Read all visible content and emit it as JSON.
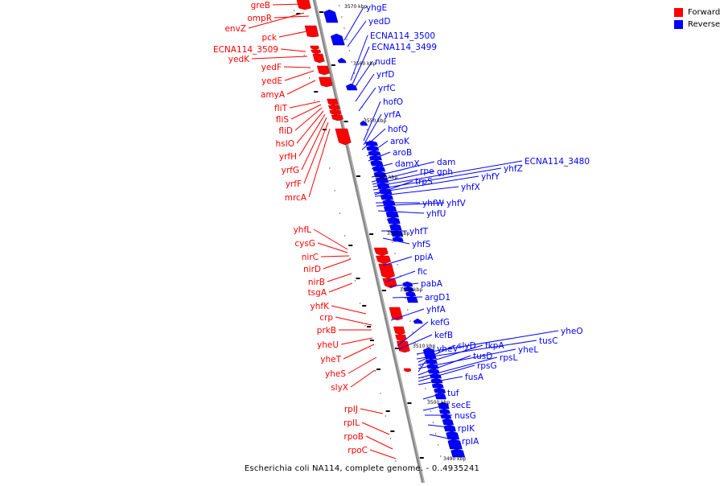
{
  "legend": {
    "forward_label": "Forward",
    "reverse_label": "Reverse",
    "forward_color": "#ff0000",
    "reverse_color": "#0000ff"
  },
  "caption": "Escherichia coli NA114, complete genome. - 0..4935241",
  "scale_unit": "kbp",
  "scale_ticks": [
    "3570 kbp",
    "3560 kbp",
    "3550 kbp",
    "3540 kbp",
    "3530 kbp",
    "3520 kbp",
    "3510 kbp",
    "3500 kbp",
    "3490 kbp"
  ],
  "forward_genes": [
    "greB",
    "ompR",
    "envZ",
    "pck",
    "ECNA114_3509",
    "yedK",
    "yedF",
    "yedE",
    "amyA",
    "fliT",
    "fliS",
    "fliD",
    "hsIO",
    "yrfH",
    "yrfG",
    "yrfF",
    "mrcA",
    "yhfL",
    "cysG",
    "nirC",
    "nirD",
    "nirB",
    "tsgA",
    "yhfK",
    "crp",
    "prkB",
    "yheU",
    "yheT",
    "yheS",
    "slyX",
    "rpIJ",
    "rpIL",
    "rpoB",
    "rpoC"
  ],
  "reverse_genes": [
    "yhgE",
    "yedD",
    "ECNA114_3500",
    "ECNA114_3499",
    "nudE",
    "yrfD",
    "yrfC",
    "hofO",
    "yrfA",
    "hofQ",
    "aroK",
    "aroB",
    "damX",
    "dam",
    "rpe",
    "gph",
    "ECNA114_3480",
    "yhfZ",
    "yhfY",
    "trpS",
    "yhfX",
    "yhfW",
    "yhfV",
    "yhfU",
    "yhfT",
    "yhfS",
    "ppiA",
    "fic",
    "pabA",
    "argD1",
    "yhfA",
    "kefG",
    "kefB",
    "yheO",
    "tusC",
    "slyD",
    "fkpA",
    "yheL",
    "yheV",
    "tusD",
    "rpsL",
    "rpsG",
    "fusA",
    "tuf",
    "secE",
    "nusG",
    "rpIK",
    "rpIA"
  ]
}
